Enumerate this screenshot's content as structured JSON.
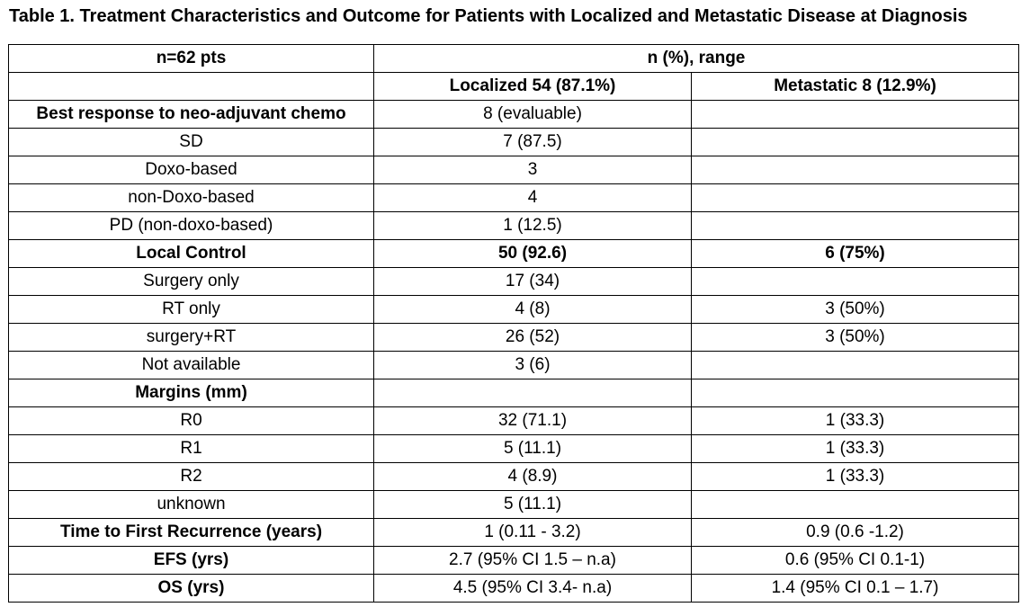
{
  "caption": "Table 1. Treatment Characteristics and Outcome for Patients with Localized and Metastatic Disease at Diagnosis",
  "header": {
    "row1": {
      "label": "n=62 pts",
      "group": "n (%), range"
    },
    "row2": {
      "localized": "Localized 54 (87.1%)",
      "metastatic": "Metastatic 8 (12.9%)"
    }
  },
  "rows": [
    {
      "label": "Best response to neo-adjuvant chemo",
      "localized": "8 (evaluable)",
      "metastatic": "",
      "bold": true
    },
    {
      "label": "SD",
      "localized": "7 (87.5)",
      "metastatic": "",
      "bold": false
    },
    {
      "label": "Doxo-based",
      "localized": "3",
      "metastatic": "",
      "bold": false
    },
    {
      "label": "non-Doxo-based",
      "localized": "4",
      "metastatic": "",
      "bold": false
    },
    {
      "label": "PD (non-doxo-based)",
      "localized": "1 (12.5)",
      "metastatic": "",
      "bold": false
    },
    {
      "label": "Local Control",
      "localized": "50 (92.6)",
      "metastatic": "6 (75%)",
      "bold": true
    },
    {
      "label": "Surgery only",
      "localized": "17 (34)",
      "metastatic": "",
      "bold": false
    },
    {
      "label": "RT only",
      "localized": "4 (8)",
      "metastatic": "3 (50%)",
      "bold": false
    },
    {
      "label": "surgery+RT",
      "localized": "26 (52)",
      "metastatic": "3 (50%)",
      "bold": false
    },
    {
      "label": "Not available",
      "localized": "3 (6)",
      "metastatic": "",
      "bold": false
    },
    {
      "label": "Margins (mm)",
      "localized": "",
      "metastatic": "",
      "bold": true
    },
    {
      "label": "R0",
      "localized": "32 (71.1)",
      "metastatic": "1 (33.3)",
      "bold": false
    },
    {
      "label": "R1",
      "localized": "5 (11.1)",
      "metastatic": "1 (33.3)",
      "bold": false
    },
    {
      "label": "R2",
      "localized": "4 (8.9)",
      "metastatic": "1 (33.3)",
      "bold": false
    },
    {
      "label": "unknown",
      "localized": "5 (11.1)",
      "metastatic": "",
      "bold": false
    },
    {
      "label": "Time to First Recurrence (years)",
      "localized": "1 (0.11 - 3.2)",
      "metastatic": "0.9 (0.6 -1.2)",
      "bold": true
    },
    {
      "label": "EFS (yrs)",
      "localized": "2.7 (95% CI 1.5 – n.a)",
      "metastatic": "0.6 (95% CI 0.1-1)",
      "bold": true
    },
    {
      "label": "OS (yrs)",
      "localized": "4.5 (95% CI 3.4- n.a)",
      "metastatic": "1.4 (95% CI 0.1 – 1.7)",
      "bold": true
    }
  ]
}
